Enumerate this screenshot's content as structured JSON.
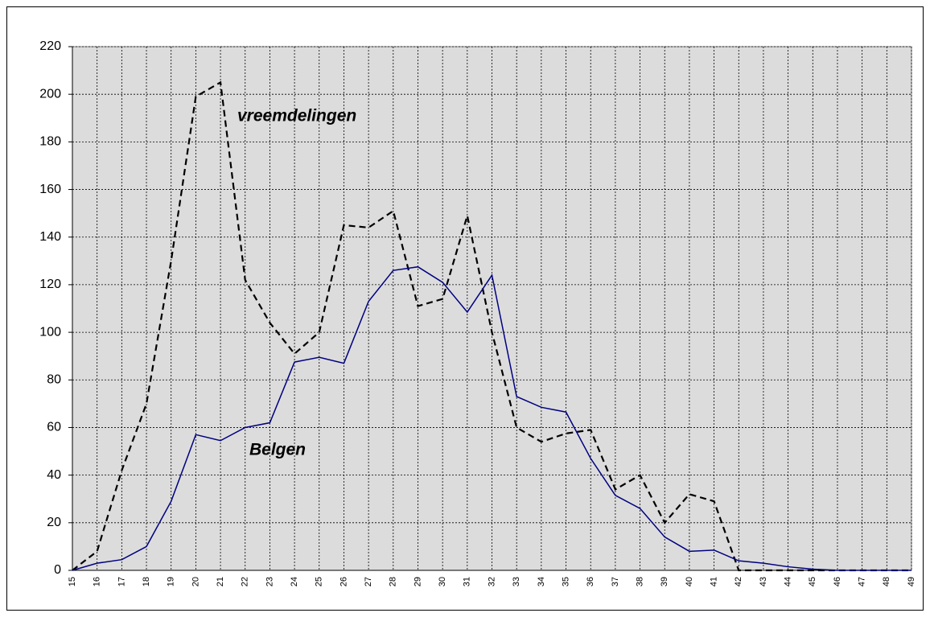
{
  "chart_data": {
    "type": "line",
    "categories": [
      "15",
      "16",
      "17",
      "18",
      "19",
      "20",
      "21",
      "22",
      "23",
      "24",
      "25",
      "26",
      "27",
      "28",
      "29",
      "30",
      "31",
      "32",
      "33",
      "34",
      "35",
      "36",
      "37",
      "38",
      "39",
      "40",
      "41",
      "42",
      "43",
      "44",
      "45",
      "46",
      "47",
      "48",
      "49"
    ],
    "series": [
      {
        "name": "vreemdelingen",
        "color": "#000000",
        "dash": true,
        "values": [
          0,
          8,
          42,
          70,
          130,
          199,
          205,
          122,
          104,
          91,
          100,
          145,
          144,
          151,
          111,
          114,
          149,
          100,
          60,
          54,
          57.5,
          59,
          34,
          40,
          20,
          32,
          29,
          0,
          0,
          0,
          0,
          0,
          0,
          0,
          0
        ]
      },
      {
        "name": "Belgen",
        "color": "#000080",
        "dash": false,
        "values": [
          0,
          3,
          4.5,
          10,
          29,
          57,
          54.5,
          60,
          62,
          87.5,
          89.5,
          87,
          113,
          126,
          127.5,
          121,
          108.5,
          124,
          73,
          68.5,
          66.5,
          47,
          31.5,
          26,
          14,
          8,
          8.5,
          4,
          3,
          1.5,
          0.5,
          0,
          0,
          0,
          0
        ]
      }
    ],
    "ylim": [
      0,
      220
    ],
    "yticks": [
      0,
      20,
      40,
      60,
      80,
      100,
      120,
      140,
      160,
      180,
      200,
      220
    ],
    "grid": true
  }
}
